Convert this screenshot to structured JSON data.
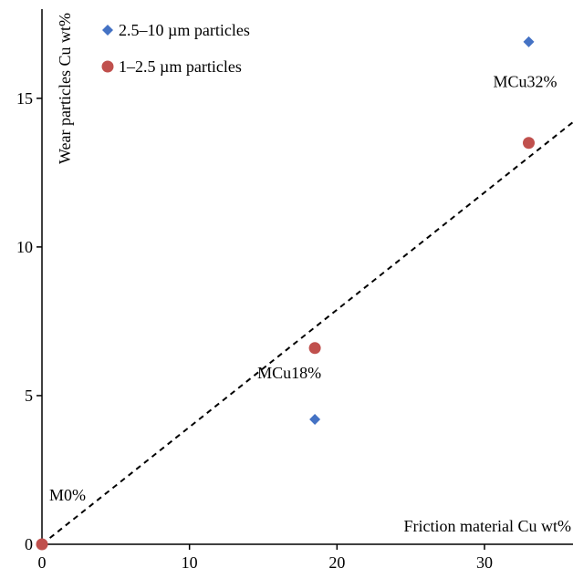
{
  "chart_data": {
    "type": "scatter",
    "title": "",
    "xlabel": "Friction material Cu wt%",
    "ylabel": "Wear particles Cu wt%",
    "xlim": [
      0,
      36
    ],
    "ylim": [
      0,
      18
    ],
    "xticks": [
      0,
      10,
      20,
      30
    ],
    "yticks": [
      0,
      5,
      10,
      15
    ],
    "grid": false,
    "legend_position": "top-left",
    "series": [
      {
        "name": "2.5–10 µm particles",
        "marker": "diamond",
        "color": "#4472C4",
        "points": [
          {
            "x": 0,
            "y": 0
          },
          {
            "x": 18.5,
            "y": 4.2
          },
          {
            "x": 33,
            "y": 16.9
          }
        ]
      },
      {
        "name": "1–2.5 µm particles",
        "marker": "circle",
        "color": "#C0504D",
        "points": [
          {
            "x": 0,
            "y": 0
          },
          {
            "x": 18.5,
            "y": 6.6
          },
          {
            "x": 33,
            "y": 13.5
          }
        ]
      }
    ],
    "reference_line": {
      "style": "dashed",
      "from": [
        0,
        0
      ],
      "to": [
        36,
        14.2
      ]
    },
    "annotations": [
      {
        "text": "M0%",
        "x": 0,
        "y": 0
      },
      {
        "text": "MCu18%",
        "x": 18.5,
        "y": 5.4
      },
      {
        "text": "MCu32%",
        "x": 33,
        "y": 15.2
      }
    ]
  }
}
